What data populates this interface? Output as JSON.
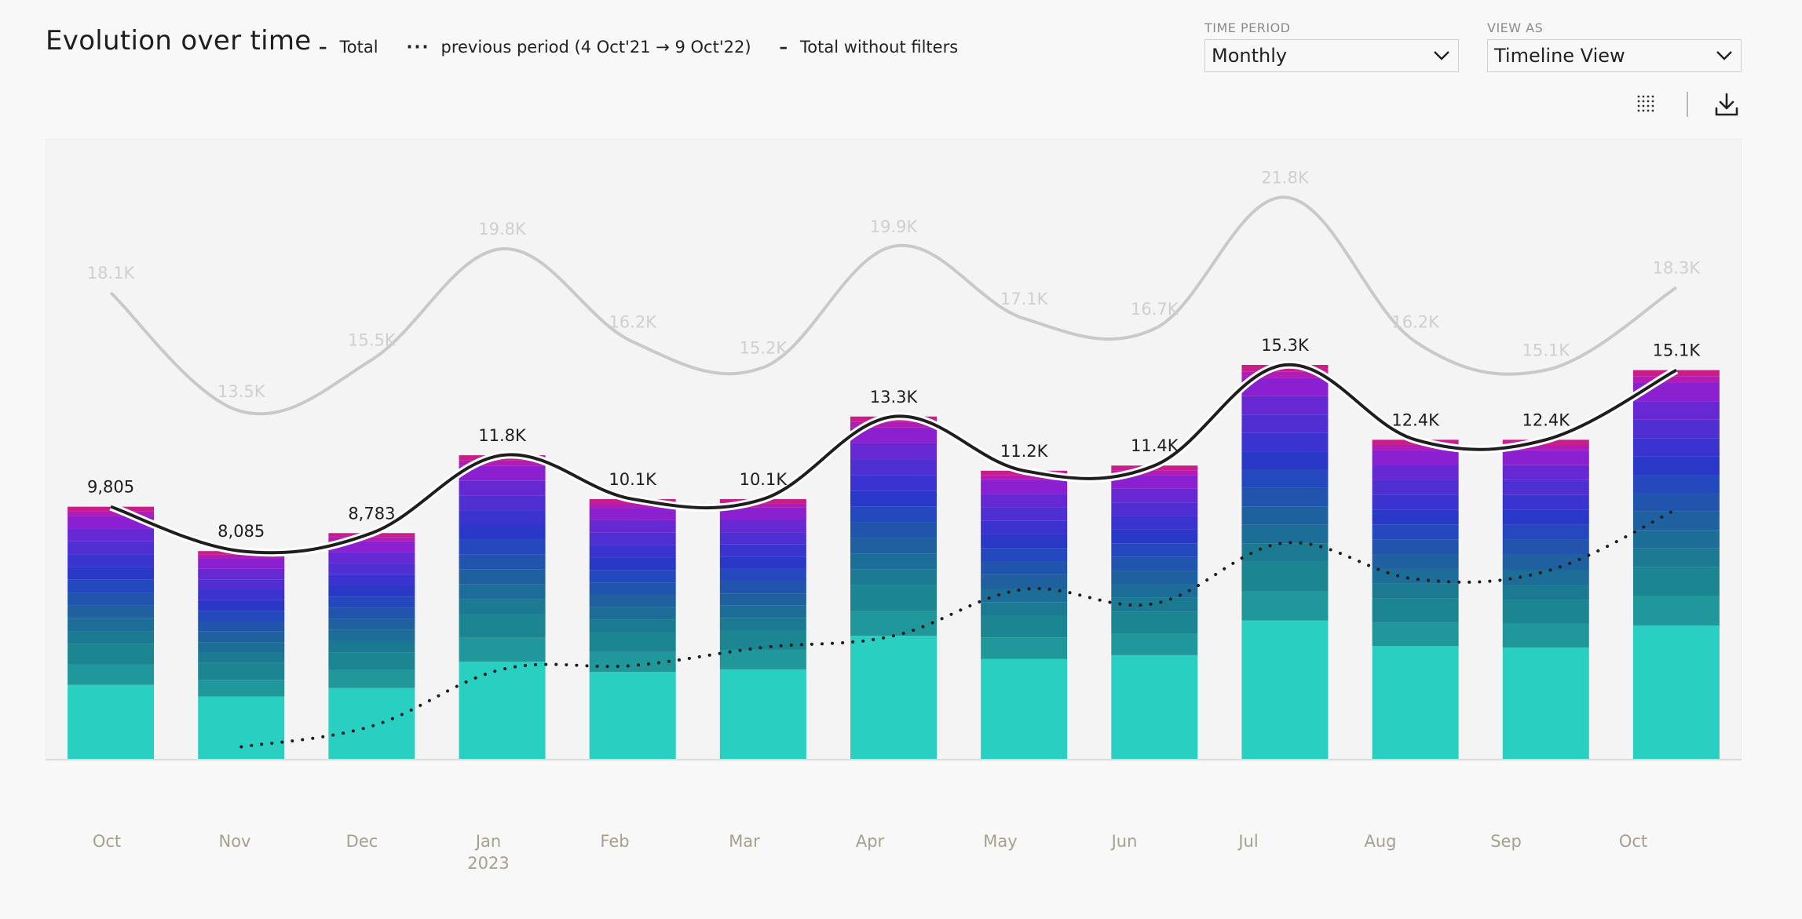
{
  "header": {
    "title": "Evolution over time",
    "legend": [
      {
        "symbol": "–",
        "label": "Total"
      },
      {
        "symbol": "···",
        "label": "previous period (4 Oct'21 → 9 Oct'22)"
      },
      {
        "symbol": "–",
        "label": "Total without filters"
      }
    ]
  },
  "controls": {
    "time_period": {
      "label": "TIME PERIOD",
      "value": "Monthly"
    },
    "view_as": {
      "label": "VIEW AS",
      "value": "Timeline View"
    }
  },
  "toolbar": {
    "icons": [
      "grid-dots-icon",
      "download-icon"
    ]
  },
  "colors": {
    "total_line": "#1e1e1e",
    "unfiltered_line": "#c9c9c9",
    "previous_line": "#1e1e1e",
    "bar_segments": [
      "#29cfc0",
      "#20989b",
      "#1b8592",
      "#1b7a92",
      "#1c6d97",
      "#1f609f",
      "#2155ad",
      "#2448bd",
      "#2a38c8",
      "#3a33cf",
      "#4f2fd2",
      "#6628d3",
      "#8a20cf",
      "#b01cb4",
      "#c91e8a"
    ]
  },
  "chart_data": {
    "type": "bar",
    "stacked": true,
    "categories": [
      "Oct",
      "Nov",
      "Dec",
      "Jan",
      "Feb",
      "Mar",
      "Apr",
      "May",
      "Jun",
      "Jul",
      "Aug",
      "Sep",
      "Oct"
    ],
    "category_sublabels": [
      "",
      "",
      "",
      "2023",
      "",
      "",
      "",
      "",
      "",
      "",
      "",
      "",
      ""
    ],
    "ylim": [
      0,
      24000
    ],
    "grid": false,
    "series": [
      {
        "name": "Total",
        "type": "line",
        "values": [
          9805,
          8085,
          8783,
          11800,
          10100,
          10100,
          13300,
          11200,
          11400,
          15300,
          12400,
          12400,
          15100
        ],
        "labels": [
          "9,805",
          "8,085",
          "8,783",
          "11.8K",
          "10.1K",
          "10.1K",
          "13.3K",
          "11.2K",
          "11.4K",
          "15.3K",
          "12.4K",
          "12.4K",
          "15.1K"
        ]
      },
      {
        "name": "Total without filters",
        "type": "line",
        "values": [
          18100,
          13500,
          15500,
          19800,
          16200,
          15200,
          19900,
          17100,
          16700,
          21800,
          16200,
          15100,
          18300
        ],
        "labels": [
          "18.1K",
          "13.5K",
          "15.5K",
          "19.8K",
          "16.2K",
          "15.2K",
          "19.9K",
          "17.1K",
          "16.7K",
          "21.8K",
          "16.2K",
          "15.1K",
          "18.3K"
        ]
      },
      {
        "name": "previous period (4 Oct'21 → 9 Oct'22)",
        "type": "dotted-line",
        "values": [
          null,
          500,
          1300,
          3500,
          3650,
          4350,
          4800,
          6600,
          6050,
          8400,
          7000,
          7300,
          9700
        ]
      }
    ],
    "base_segment_values": [
      2900,
      2450,
      2780,
      3800,
      3400,
      3500,
      4800,
      3900,
      4050,
      5400,
      4400,
      4350,
      5200
    ]
  }
}
